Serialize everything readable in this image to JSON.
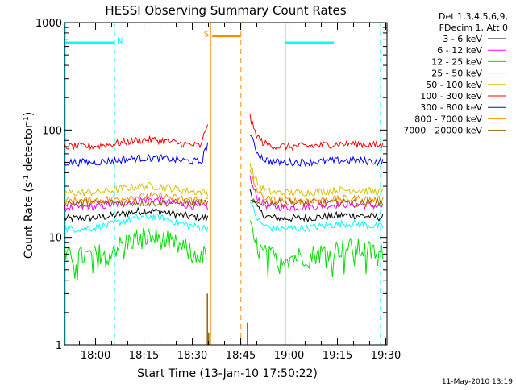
{
  "chart_data": {
    "type": "line",
    "title": "HESSI Observing Summary Count Rates",
    "xlabel": "Start Time (13-Jan-10 17:50:22)",
    "ylabel_parts": {
      "main": "Count Rate (s",
      "sup1": "-1",
      "mid": " detector",
      "sup2": "-1",
      "end": ")"
    },
    "footer": "11-May-2010 13:19",
    "x_unit": "minutes since 17:50:22",
    "xlim": [
      0,
      100
    ],
    "ylim": [
      1,
      1000
    ],
    "yscale": "log",
    "x_ticks": [
      {
        "value": 9.633,
        "label": "18:00"
      },
      {
        "value": 24.633,
        "label": "18:15"
      },
      {
        "value": 39.633,
        "label": "18:30"
      },
      {
        "value": 54.633,
        "label": "18:45"
      },
      {
        "value": 69.633,
        "label": "19:00"
      },
      {
        "value": 84.633,
        "label": "19:15"
      },
      {
        "value": 99.633,
        "label": "19:30"
      }
    ],
    "y_ticks": [
      {
        "value": 1,
        "label": "1"
      },
      {
        "value": 10,
        "label": "10"
      },
      {
        "value": 100,
        "label": "100"
      },
      {
        "value": 1000,
        "label": "1000"
      }
    ],
    "legend_header": [
      "Det 1,3,4,5,6,9,",
      "FDecim 1, Att 0"
    ],
    "gap": {
      "start": 44.5,
      "end": 57.5
    },
    "series": [
      {
        "name": "3 - 6 keV",
        "color": "#000000",
        "base": 15,
        "bump": 0.18
      },
      {
        "name": "6 - 12 keV",
        "color": "#ff00ff",
        "base": 19,
        "bump": 0.18
      },
      {
        "name": "12 - 25 keV",
        "color": "#00e000",
        "base": 6.5,
        "bump": 0.55
      },
      {
        "name": "25 - 50 keV",
        "color": "#00ffff",
        "base": 12,
        "bump": 0.3
      },
      {
        "name": "50 - 100 keV",
        "color": "#d4c400",
        "base": 26,
        "bump": 0.16
      },
      {
        "name": "100 - 300 keV",
        "color": "#ff0000",
        "base": 70,
        "bump": 0.16
      },
      {
        "name": "300 - 800 keV",
        "color": "#0000ff",
        "base": 50,
        "bump": 0.1
      },
      {
        "name": "800 - 7000 keV",
        "color": "#ff8c00",
        "base": 22,
        "bump": 0.1
      },
      {
        "name": "7000 - 20000 keV",
        "color": "#8b6508",
        "base": 21,
        "bump": 0.0
      }
    ],
    "annotations": {
      "night_label": "N",
      "saa_label": "S",
      "night_color": "#00ffff",
      "saa_color": "#ff8c00",
      "night_level": 650,
      "saa_level": 750,
      "night_bars": [
        {
          "start": 0,
          "end": 15.5,
          "label_at": 17.2
        },
        {
          "start": 68.5,
          "end": 83.5
        }
      ],
      "saa_bars": [
        {
          "start": 45.8,
          "end": 54.7,
          "label_at": 44.0
        }
      ],
      "night_dashes": [
        15.5,
        98.0
      ],
      "saa_dashes": [
        54.7
      ],
      "night_solid": [
        68.5
      ],
      "saa_solid": [
        45.3
      ]
    }
  }
}
